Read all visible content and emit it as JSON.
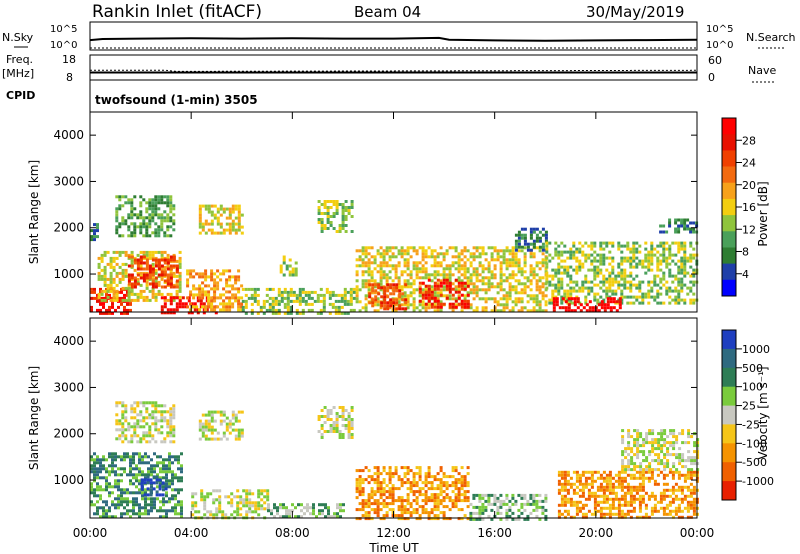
{
  "header": {
    "station": "Rankin Inlet (fitACF)",
    "beam": "Beam 04",
    "date": "30/May/2019"
  },
  "summary": {
    "nsky_label": "N.Sky",
    "nsearch_label": "N.Search",
    "nsky_ticks": [
      "10^5",
      "10^0"
    ],
    "nsearch_ticks": [
      "10^5",
      "10^0"
    ],
    "freq_label": "Freq.",
    "freq_unit": "[MHz]",
    "freq_ticks": [
      "18",
      "8"
    ],
    "nave_label": "Nave",
    "nave_ticks": [
      "60",
      "0"
    ],
    "cpid_label": "CPID",
    "cpid_value": "twofsound (1-min) 3505"
  },
  "axes": {
    "x_ticks": [
      "00:00",
      "04:00",
      "08:00",
      "12:00",
      "16:00",
      "20:00",
      "00:00"
    ],
    "x_label": "Time UT",
    "y_ticks": [
      "1000",
      "2000",
      "3000",
      "4000"
    ],
    "y_label": "Slant Range [km]"
  },
  "colorbars": {
    "power": {
      "label": "Power [dB]",
      "ticks": [
        "4",
        "8",
        "12",
        "16",
        "20",
        "24",
        "28"
      ],
      "colors": [
        "#0000ff",
        "#1f3fa8",
        "#2e7d32",
        "#4aa05a",
        "#8fc43c",
        "#f3ce10",
        "#f7a11a",
        "#f36a0f",
        "#f04000",
        "#e81000",
        "#ff0000"
      ]
    },
    "velocity": {
      "label": "Velocity [m s⁻¹]",
      "ticks": [
        "1000",
        "500",
        "100",
        "25",
        "-25",
        "-100",
        "-500",
        "-1000"
      ],
      "colors": [
        "#1f3fc0",
        "#2f6a80",
        "#2e7d55",
        "#7acb3c",
        "#c8c8c0",
        "#f5c518",
        "#f59300",
        "#f06000",
        "#e82000"
      ]
    }
  },
  "chart_data": [
    {
      "type": "line",
      "panel": "nsky-nsearch",
      "x_range_hours": [
        0,
        24
      ],
      "ylim": [
        "10^0",
        "10^5"
      ],
      "series": [
        {
          "name": "N.Sky",
          "x": [
            0,
            0.5,
            2,
            4,
            6,
            8,
            10,
            12,
            13.8,
            14.2,
            16,
            18,
            20,
            22,
            24
          ],
          "y": [
            2.2,
            2.5,
            2.6,
            2.7,
            2.6,
            2.7,
            2.6,
            2.6,
            2.8,
            2.3,
            2.1,
            2.0,
            2.1,
            2.2,
            2.3
          ]
        },
        {
          "name": "N.Search",
          "x": [
            0,
            24
          ],
          "y": [
            0.0,
            0.0
          ]
        }
      ]
    },
    {
      "type": "line",
      "panel": "freq-nave",
      "x_range_hours": [
        0,
        24
      ],
      "series": [
        {
          "name": "Freq.",
          "x": [
            0,
            24
          ],
          "y": [
            10.5,
            10.5
          ]
        },
        {
          "name": "Nave",
          "x": [
            0,
            3,
            3.4,
            24
          ],
          "y": [
            21,
            21,
            18,
            21
          ]
        }
      ]
    },
    {
      "type": "heatmap",
      "panel": "power",
      "x_range_hours": [
        0,
        24
      ],
      "ylim": [
        180,
        4500
      ],
      "color_ticks": [
        4,
        8,
        12,
        16,
        20,
        24,
        28
      ],
      "activity": [
        {
          "t0": 0.0,
          "t1": 0.3,
          "r0": 1750,
          "r1": 2100,
          "level": 2
        },
        {
          "t0": 0.0,
          "t1": 1.6,
          "r0": 180,
          "r1": 700,
          "level": 9
        },
        {
          "t0": 0.3,
          "t1": 3.6,
          "r0": 400,
          "r1": 1500,
          "level": 5
        },
        {
          "t0": 1.0,
          "t1": 3.3,
          "r0": 1800,
          "r1": 2700,
          "level": 3
        },
        {
          "t0": 1.5,
          "t1": 3.5,
          "r0": 700,
          "r1": 1400,
          "level": 8
        },
        {
          "t0": 2.8,
          "t1": 5.0,
          "r0": 180,
          "r1": 520,
          "level": 10
        },
        {
          "t0": 3.8,
          "t1": 6.0,
          "r0": 250,
          "r1": 1100,
          "level": 6
        },
        {
          "t0": 4.3,
          "t1": 6.0,
          "r0": 1900,
          "r1": 2500,
          "level": 5
        },
        {
          "t0": 6.0,
          "t1": 10.5,
          "r0": 180,
          "r1": 700,
          "level": 4
        },
        {
          "t0": 7.5,
          "t1": 8.2,
          "r0": 1000,
          "r1": 1400,
          "level": 4
        },
        {
          "t0": 9.0,
          "t1": 10.4,
          "r0": 1900,
          "r1": 2600,
          "level": 4
        },
        {
          "t0": 10.5,
          "t1": 18.0,
          "r0": 180,
          "r1": 1600,
          "level": 5
        },
        {
          "t0": 11.0,
          "t1": 12.5,
          "r0": 250,
          "r1": 800,
          "level": 8
        },
        {
          "t0": 13.0,
          "t1": 15.0,
          "r0": 300,
          "r1": 900,
          "level": 9
        },
        {
          "t0": 16.8,
          "t1": 18.0,
          "r0": 1500,
          "r1": 2000,
          "level": 2
        },
        {
          "t0": 18.0,
          "t1": 24.0,
          "r0": 400,
          "r1": 1700,
          "level": 4
        },
        {
          "t0": 18.3,
          "t1": 21.0,
          "r0": 180,
          "r1": 500,
          "level": 10
        },
        {
          "t0": 22.5,
          "t1": 24.0,
          "r0": 1900,
          "r1": 2200,
          "level": 2
        }
      ]
    },
    {
      "type": "heatmap",
      "panel": "velocity",
      "x_range_hours": [
        0,
        24
      ],
      "ylim": [
        180,
        4500
      ],
      "color_ticks": [
        1000,
        500,
        100,
        25,
        -25,
        -100,
        -500,
        -1000
      ],
      "activity": [
        {
          "t0": 0.0,
          "t1": 3.6,
          "r0": 180,
          "r1": 1600,
          "level": 2
        },
        {
          "t0": 1.0,
          "t1": 3.3,
          "r0": 1800,
          "r1": 2700,
          "level": 4
        },
        {
          "t0": 2.0,
          "t1": 3.0,
          "r0": 700,
          "r1": 1100,
          "level": 0
        },
        {
          "t0": 4.3,
          "t1": 6.0,
          "r0": 1900,
          "r1": 2500,
          "level": 4
        },
        {
          "t0": 4.0,
          "t1": 7.0,
          "r0": 180,
          "r1": 800,
          "level": 4
        },
        {
          "t0": 7.0,
          "t1": 10.0,
          "r0": 180,
          "r1": 500,
          "level": 3
        },
        {
          "t0": 9.0,
          "t1": 10.4,
          "r0": 1900,
          "r1": 2600,
          "level": 4
        },
        {
          "t0": 10.5,
          "t1": 15.0,
          "r0": 180,
          "r1": 1300,
          "level": 6
        },
        {
          "t0": 15.0,
          "t1": 18.0,
          "r0": 180,
          "r1": 700,
          "level": 3
        },
        {
          "t0": 18.5,
          "t1": 24.0,
          "r0": 200,
          "r1": 1200,
          "level": 6
        },
        {
          "t0": 21.0,
          "t1": 24.0,
          "r0": 1200,
          "r1": 2100,
          "level": 4
        }
      ]
    }
  ]
}
